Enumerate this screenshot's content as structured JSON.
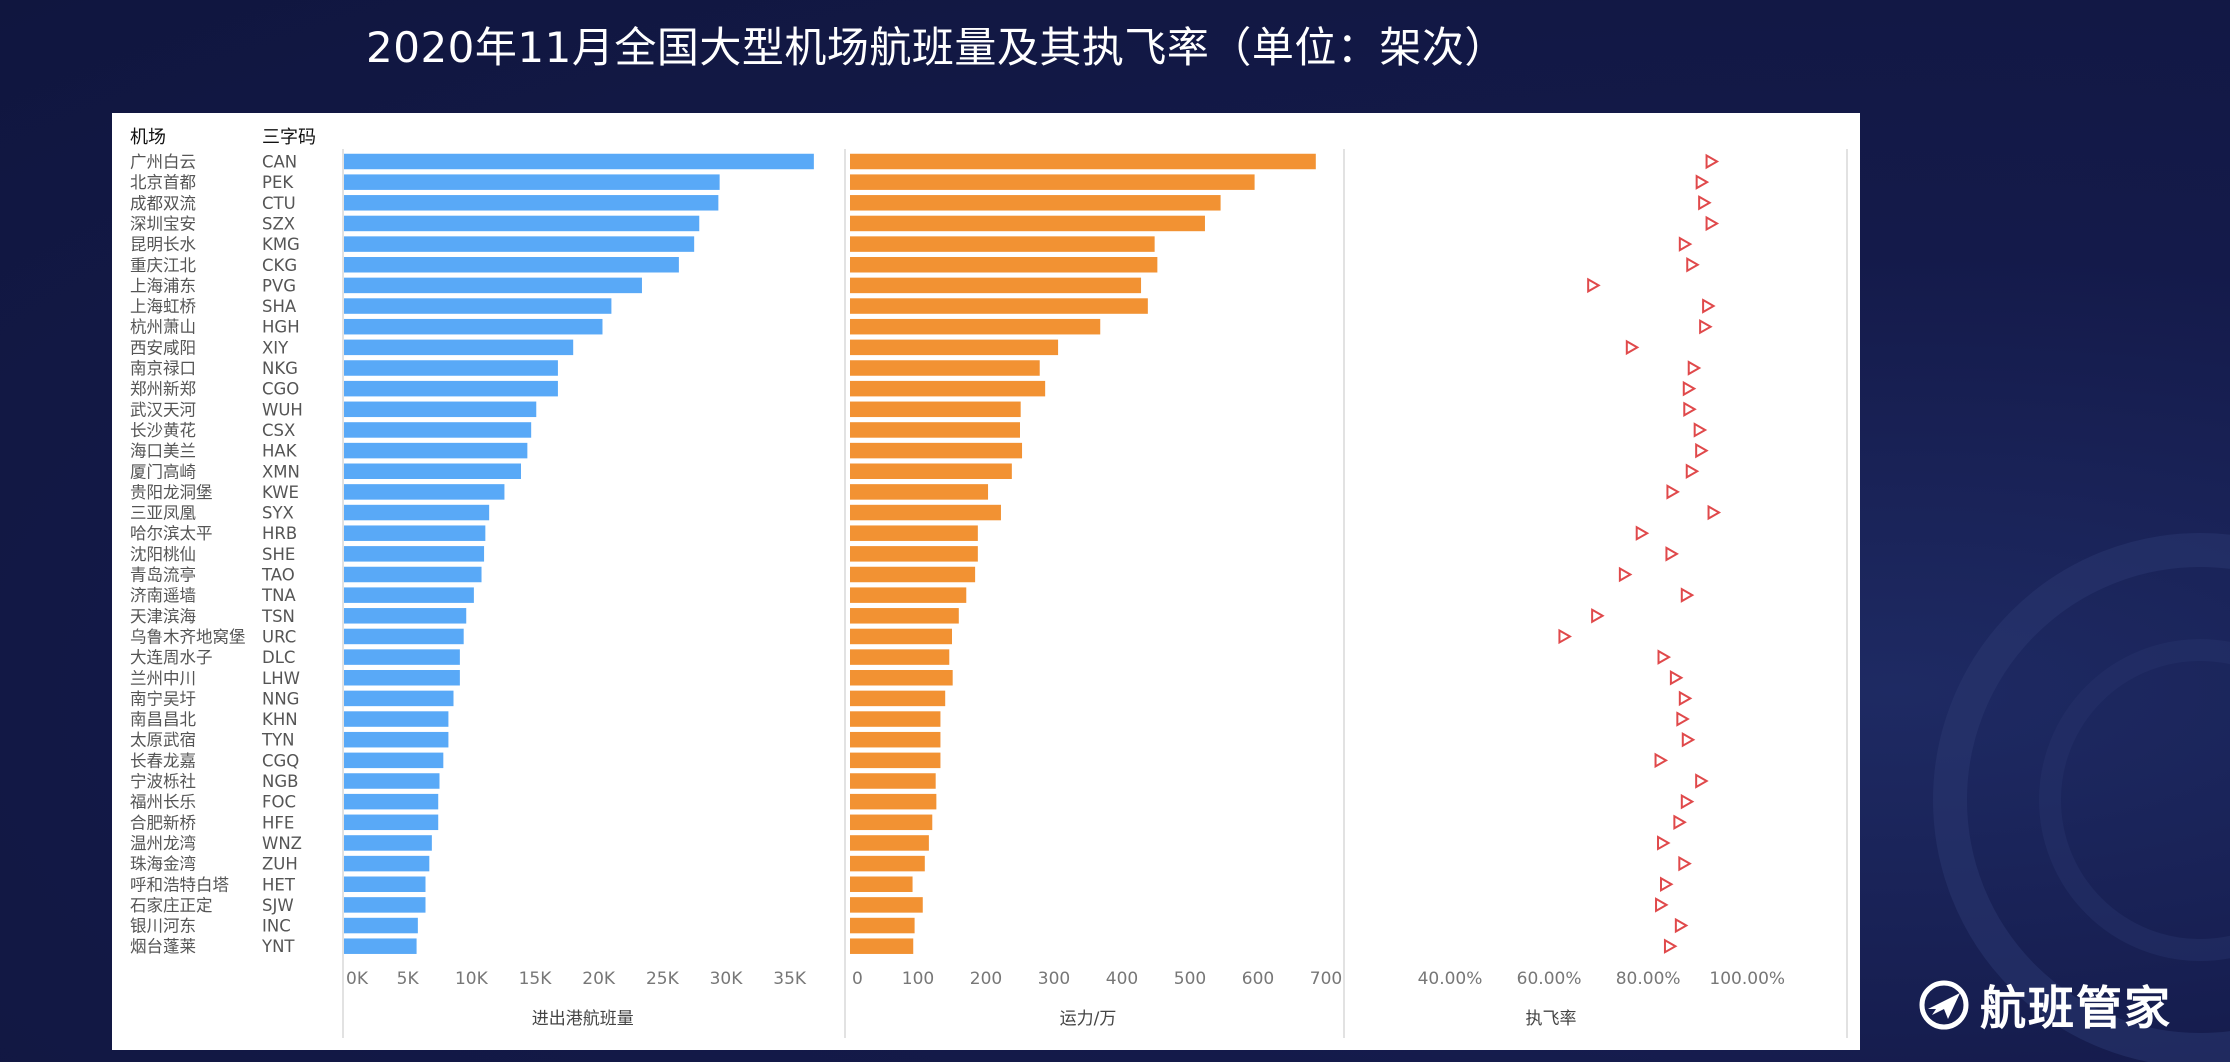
{
  "title": "2020年11月全国大型机场航班量及其执飞率（单位：架次）",
  "brand": {
    "name": "航班管家",
    "logo_icon": "plane-circle-icon"
  },
  "chart_data": {
    "type": "bar",
    "row_headers": [
      "机场",
      "三字码"
    ],
    "categories": [
      "广州白云",
      "北京首都",
      "成都双流",
      "深圳宝安",
      "昆明长水",
      "重庆江北",
      "上海浦东",
      "上海虹桥",
      "杭州萧山",
      "西安咸阳",
      "南京禄口",
      "郑州新郑",
      "武汉天河",
      "长沙黄花",
      "海口美兰",
      "厦门高崎",
      "贵阳龙洞堡",
      "三亚凤凰",
      "哈尔滨太平",
      "沈阳桃仙",
      "青岛流亭",
      "济南遥墙",
      "天津滨海",
      "乌鲁木齐地窝堡",
      "大连周水子",
      "兰州中川",
      "南宁吴圩",
      "南昌昌北",
      "太原武宿",
      "长春龙嘉",
      "宁波栎社",
      "福州长乐",
      "合肥新桥",
      "温州龙湾",
      "珠海金湾",
      "呼和浩特白塔",
      "石家庄正定",
      "银川河东",
      "烟台蓬莱"
    ],
    "codes": [
      "CAN",
      "PEK",
      "CTU",
      "SZX",
      "KMG",
      "CKG",
      "PVG",
      "SHA",
      "HGH",
      "XIY",
      "NKG",
      "CGO",
      "WUH",
      "CSX",
      "HAK",
      "XMN",
      "KWE",
      "SYX",
      "HRB",
      "SHE",
      "TAO",
      "TNA",
      "TSN",
      "URC",
      "DLC",
      "LHW",
      "NNG",
      "KHN",
      "TYN",
      "CGQ",
      "NGB",
      "FOC",
      "HFE",
      "WNZ",
      "ZUH",
      "HET",
      "SJW",
      "INC",
      "YNT"
    ],
    "panels": [
      {
        "name": "flights",
        "type": "bar",
        "xlabel": "进出港航班量",
        "xlim": [
          0,
          37500
        ],
        "ticks": [
          0,
          5000,
          10000,
          15000,
          20000,
          25000,
          30000,
          35000
        ],
        "tick_labels": [
          "0K",
          "5K",
          "10K",
          "15K",
          "20K",
          "25K",
          "30K",
          "35K"
        ],
        "color": "#59a9f7",
        "values": [
          36900,
          29500,
          29400,
          27900,
          27500,
          26300,
          23400,
          21000,
          20300,
          18000,
          16800,
          16800,
          15100,
          14700,
          14400,
          13900,
          12600,
          11400,
          11100,
          11000,
          10800,
          10200,
          9600,
          9400,
          9100,
          9100,
          8600,
          8200,
          8200,
          7800,
          7500,
          7400,
          7400,
          6900,
          6700,
          6400,
          6400,
          5800,
          5700
        ]
      },
      {
        "name": "capacity",
        "type": "bar",
        "xlabel": "运力/万",
        "xlim": [
          0,
          700
        ],
        "ticks": [
          0,
          100,
          200,
          300,
          400,
          500,
          600,
          700
        ],
        "tick_labels": [
          "0",
          "100",
          "200",
          "300",
          "400",
          "500",
          "600",
          "700"
        ],
        "color": "#f29233",
        "values": [
          685,
          595,
          545,
          522,
          448,
          452,
          428,
          438,
          368,
          306,
          279,
          287,
          251,
          250,
          253,
          238,
          203,
          222,
          188,
          188,
          184,
          171,
          160,
          150,
          146,
          151,
          140,
          133,
          133,
          133,
          126,
          127,
          121,
          116,
          110,
          92,
          107,
          95,
          93
        ]
      },
      {
        "name": "rate",
        "type": "scatter",
        "xlabel": "执飞率",
        "xlim": [
          0.4,
          1.05
        ],
        "ticks": [
          0.4,
          0.6,
          0.8,
          1.0
        ],
        "tick_labels": [
          "40.00%",
          "60.00%",
          "80.00%",
          "100.00%"
        ],
        "color": "#e0494b",
        "marker": "triangle-right",
        "values": [
          0.927,
          0.907,
          0.912,
          0.927,
          0.873,
          0.888,
          0.688,
          0.92,
          0.914,
          0.766,
          0.891,
          0.881,
          0.882,
          0.903,
          0.906,
          0.887,
          0.848,
          0.931,
          0.786,
          0.846,
          0.752,
          0.877,
          0.696,
          0.63,
          0.83,
          0.855,
          0.873,
          0.868,
          0.879,
          0.824,
          0.906,
          0.877,
          0.862,
          0.829,
          0.872,
          0.835,
          0.825,
          0.865,
          0.843
        ]
      }
    ],
    "grid": false,
    "legend": "none"
  }
}
